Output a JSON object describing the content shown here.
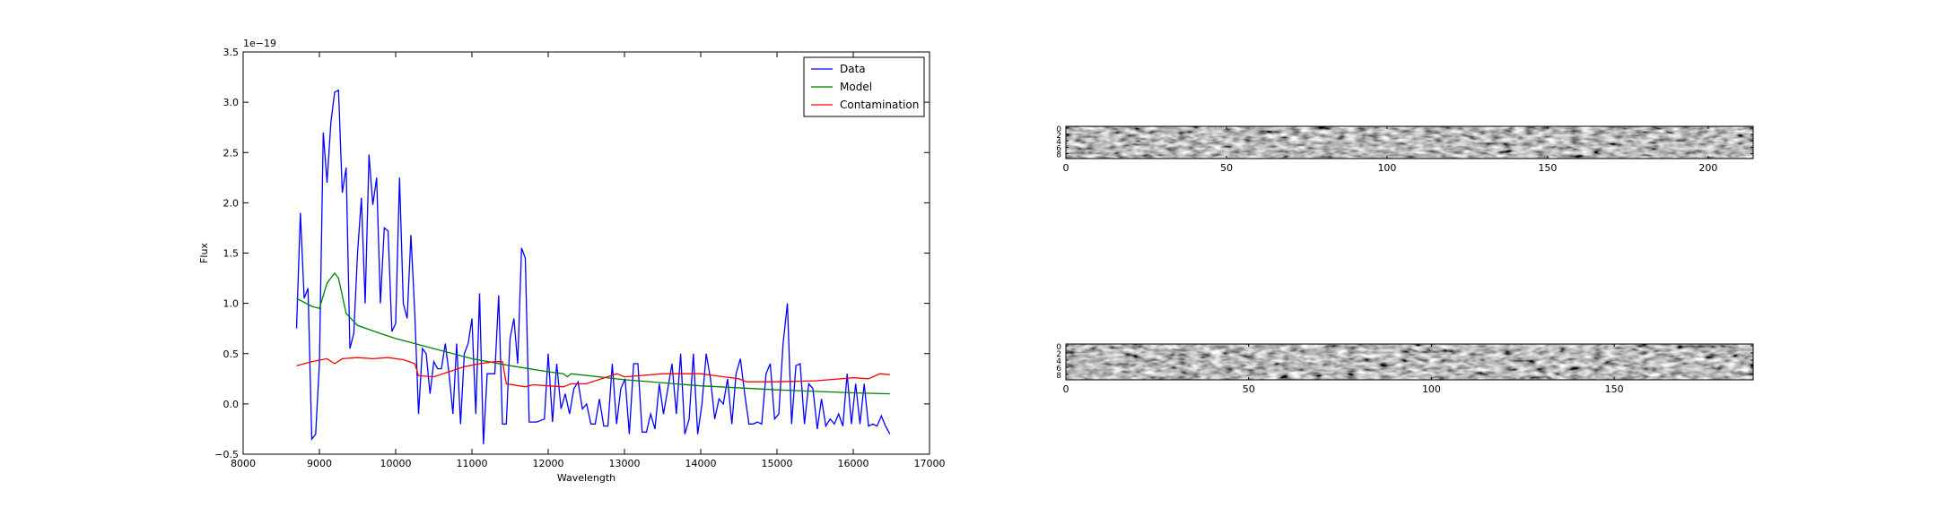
{
  "chart_data": [
    {
      "type": "line",
      "xlabel": "Wavelength",
      "ylabel": "Flux",
      "offset_text": "1e−19",
      "xlim": [
        8000,
        17000
      ],
      "ylim": [
        -0.5,
        3.5
      ],
      "xticks": [
        8000,
        9000,
        10000,
        11000,
        12000,
        13000,
        14000,
        15000,
        16000,
        17000
      ],
      "yticks": [
        {
          "value": -0.5,
          "label": "−0.5"
        },
        {
          "value": 0,
          "label": "0.0"
        },
        0.5,
        {
          "value": 1,
          "label": "1.0"
        },
        1.5,
        {
          "value": 2,
          "label": "2.0"
        },
        2.5,
        {
          "value": 3,
          "label": "3.0"
        },
        3.5
      ],
      "legend": "upper right",
      "series": [
        {
          "name": "Data",
          "color": "#0000ff",
          "x": [
            8700,
            8750,
            8800,
            8850,
            8900,
            8950,
            9000,
            9050,
            9100,
            9150,
            9200,
            9250,
            9300,
            9350,
            9400,
            9450,
            9500,
            9550,
            9600,
            9650,
            9700,
            9750,
            9800,
            9850,
            9900,
            9950,
            10000,
            10050,
            10100,
            10150,
            10200,
            10250,
            10300,
            10350,
            10400,
            10450,
            10500,
            10550,
            10600,
            10650,
            10700,
            10750,
            10800,
            10850,
            10900,
            10950,
            11000,
            11050,
            11100,
            11150,
            11200,
            11250,
            11300,
            11350,
            11400,
            11450,
            11500,
            11550,
            11600,
            11650,
            11700,
            11750,
            11850,
            11950,
            12000,
            12056,
            12112,
            12168,
            12224,
            12280,
            12336,
            12392,
            12448,
            12504,
            12560,
            12616,
            12672,
            12728,
            12784,
            12840,
            12896,
            12952,
            13008,
            13064,
            13120,
            13176,
            13232,
            13288,
            13344,
            13400,
            13456,
            13512,
            13568,
            13624,
            13680,
            13736,
            13792,
            13848,
            13904,
            13960,
            14016,
            14072,
            14128,
            14184,
            14240,
            14296,
            14352,
            14408,
            14464,
            14520,
            14576,
            14632,
            14688,
            14744,
            14800,
            14856,
            14912,
            14968,
            15024,
            15080,
            15136,
            15192,
            15248,
            15304,
            15360,
            15416,
            15472,
            15528,
            15584,
            15640,
            15696,
            15752,
            15808,
            15864,
            15920,
            15976,
            16032,
            16088,
            16144,
            16200,
            16256,
            16312,
            16368,
            16424,
            16480
          ],
          "values": [
            0.75,
            1.9,
            1.05,
            1.15,
            -0.35,
            -0.3,
            0.4,
            2.7,
            2.2,
            2.8,
            3.1,
            3.12,
            2.1,
            2.35,
            0.55,
            0.7,
            1.5,
            2.05,
            1.0,
            2.48,
            1.98,
            2.25,
            1.0,
            1.75,
            1.72,
            0.72,
            0.8,
            2.25,
            1.0,
            0.85,
            1.68,
            0.9,
            -0.1,
            0.55,
            0.5,
            0.1,
            0.42,
            0.35,
            0.35,
            0.6,
            0.3,
            -0.1,
            0.6,
            -0.2,
            0.5,
            0.6,
            0.85,
            -0.1,
            1.1,
            -0.4,
            0.3,
            0.3,
            0.3,
            1.08,
            -0.2,
            -0.2,
            0.65,
            0.85,
            0.4,
            1.55,
            1.45,
            -0.18,
            -0.18,
            -0.15,
            0.5,
            -0.18,
            0.4,
            -0.05,
            0.1,
            -0.1,
            0.15,
            0.22,
            -0.05,
            0.0,
            -0.2,
            -0.2,
            0.05,
            -0.22,
            -0.22,
            0.4,
            -0.2,
            0.15,
            0.25,
            -0.3,
            0.4,
            0.4,
            -0.28,
            -0.28,
            -0.1,
            -0.25,
            0.2,
            -0.1,
            0.15,
            0.4,
            -0.1,
            0.5,
            -0.3,
            -0.15,
            0.5,
            -0.3,
            0.0,
            0.5,
            0.25,
            -0.15,
            0.05,
            0.0,
            0.25,
            -0.2,
            0.3,
            0.45,
            0.1,
            -0.2,
            -0.2,
            -0.18,
            -0.2,
            0.3,
            0.4,
            -0.15,
            -0.1,
            0.6,
            1.0,
            -0.2,
            0.38,
            0.4,
            -0.2,
            0.2,
            0.15,
            -0.25,
            0.05,
            -0.22,
            -0.15,
            -0.2,
            -0.1,
            -0.22,
            0.3,
            -0.2,
            0.2,
            -0.2,
            0.2,
            -0.22,
            -0.2,
            -0.22,
            -0.12,
            -0.22,
            -0.3
          ]
        },
        {
          "name": "Model",
          "color": "#008000",
          "x": [
            8700,
            8900,
            9000,
            9100,
            9200,
            9250,
            9350,
            9500,
            9800,
            10000,
            10500,
            11000,
            11500,
            12000,
            12200,
            12250,
            12300,
            13000,
            14000,
            15000,
            16000,
            16480
          ],
          "values": [
            1.05,
            0.97,
            0.95,
            1.2,
            1.3,
            1.25,
            0.9,
            0.78,
            0.7,
            0.65,
            0.55,
            0.45,
            0.38,
            0.32,
            0.3,
            0.27,
            0.3,
            0.24,
            0.18,
            0.14,
            0.11,
            0.1
          ]
        },
        {
          "name": "Contamination",
          "color": "#ff0000",
          "x": [
            8700,
            8900,
            9100,
            9200,
            9300,
            9500,
            9700,
            9900,
            10100,
            10250,
            10300,
            10500,
            10700,
            10900,
            11100,
            11300,
            11400,
            11450,
            11700,
            11800,
            12000,
            12200,
            12300,
            12500,
            12700,
            12900,
            13000,
            13200,
            13500,
            13800,
            14000,
            14300,
            14500,
            14600,
            15000,
            15500,
            16000,
            16200,
            16350,
            16480
          ],
          "values": [
            0.38,
            0.42,
            0.45,
            0.4,
            0.45,
            0.46,
            0.45,
            0.46,
            0.44,
            0.4,
            0.28,
            0.27,
            0.32,
            0.37,
            0.4,
            0.42,
            0.42,
            0.2,
            0.17,
            0.19,
            0.18,
            0.17,
            0.2,
            0.2,
            0.25,
            0.3,
            0.27,
            0.28,
            0.3,
            0.3,
            0.3,
            0.27,
            0.25,
            0.22,
            0.22,
            0.23,
            0.26,
            0.25,
            0.3,
            0.29
          ]
        }
      ]
    },
    {
      "type": "image",
      "xlim": [
        0,
        214
      ],
      "ylim": [
        9.5,
        -0.5
      ],
      "xticks": [
        0,
        50,
        100,
        150,
        200
      ],
      "yticks": [
        0,
        2,
        4,
        6,
        8
      ]
    },
    {
      "type": "image",
      "xlim": [
        0,
        188
      ],
      "ylim": [
        9.5,
        -0.5
      ],
      "xticks": [
        0,
        50,
        100,
        150
      ],
      "yticks": [
        0,
        2,
        4,
        6,
        8
      ]
    }
  ]
}
